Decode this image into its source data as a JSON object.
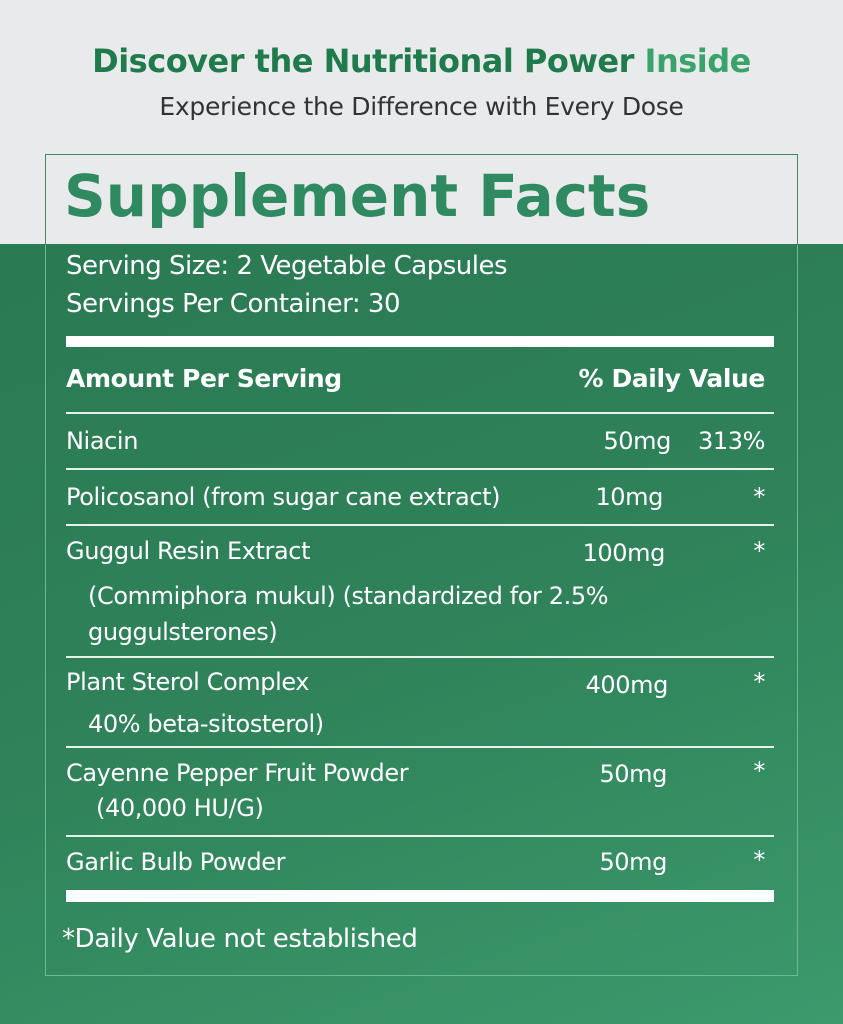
{
  "header": {
    "title_main": "Discover the Nutritional Power",
    "title_accent": "Inside",
    "subtitle": "Experience the Difference with Every Dose"
  },
  "colors": {
    "green_bg": "#2f8259",
    "title_green": "#2f8a62",
    "header_green": "#1f7a4c",
    "accent_green": "#3aa36b"
  },
  "facts": {
    "title": "Supplement Facts",
    "serving_size": "Serving Size: 2 Vegetable Capsules",
    "servings_per_container": "Servings Per Container: 30",
    "col_amount": "Amount Per Serving",
    "col_dv": "% Daily Value",
    "rows": [
      {
        "name": "Niacin",
        "amount": "50mg",
        "dv": "313%"
      },
      {
        "name": "Policosanol (from sugar cane extract)",
        "amount": "10mg",
        "dv": "*"
      },
      {
        "name": "Guggul Resin Extract",
        "sub1": "(Commiphora mukul) (standardized for 2.5%",
        "sub2": "guggulsterones)",
        "amount": "100mg",
        "dv": "*"
      },
      {
        "name": "Plant Sterol Complex",
        "sub1": "40% beta-sitosterol)",
        "amount": "400mg",
        "dv": "*"
      },
      {
        "name": "Cayenne Pepper Fruit Powder",
        "sub1": "(40,000 HU/G)",
        "amount": "50mg",
        "dv": "*"
      },
      {
        "name": "Garlic Bulb Powder",
        "amount": "50mg",
        "dv": "*"
      }
    ],
    "footnote": "*Daily Value not established"
  }
}
